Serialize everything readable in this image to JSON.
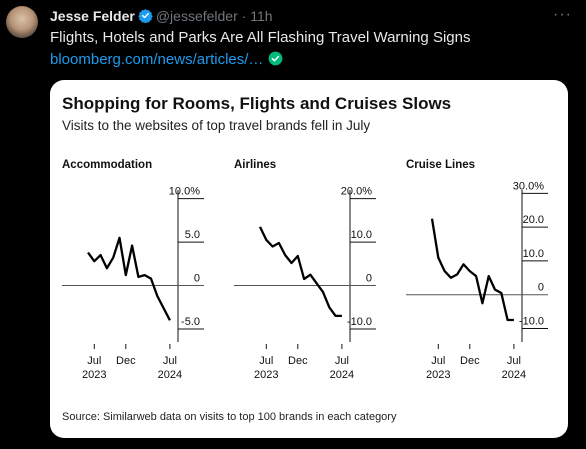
{
  "tweet": {
    "author_name": "Jesse Felder",
    "handle": "@jessefelder",
    "separator": "·",
    "time": "11h",
    "text": "Flights, Hotels and Parks Are All Flashing Travel Warning Signs",
    "link": "bloomberg.com/news/articles/…",
    "more_label": "···",
    "colors": {
      "verified": "#1d9bf0",
      "link": "#1d9bf0",
      "link_check": "#00ba7c"
    },
    "icons": {
      "verified": "verified-badge-icon",
      "link_check": "check-circle-icon",
      "more": "more-dots-icon"
    }
  },
  "chart_card": {
    "title": "Shopping for Rooms, Flights and Cruises Slows",
    "subtitle": "Visits to the websites of top travel brands fell in July",
    "source": "Source: Similarweb data on visits to top 100 brands in each category"
  },
  "chart_data": [
    {
      "type": "line",
      "title": "Accommodation",
      "x_tick_labels": [
        "Jul",
        "Dec",
        "Jul"
      ],
      "x_tick_years": [
        "2023",
        "",
        "2024"
      ],
      "y_tick_labels": [
        "10.0%",
        "5.0",
        "0",
        "-5.0"
      ],
      "y_ticks": [
        10,
        5,
        0,
        -5
      ],
      "ylim": [
        -6.5,
        11
      ],
      "x_months": [
        "2023-06",
        "2023-07",
        "2023-08",
        "2023-09",
        "2023-10",
        "2023-11",
        "2023-12",
        "2024-01",
        "2024-02",
        "2024-03",
        "2024-04",
        "2024-05",
        "2024-06",
        "2024-07"
      ],
      "values": [
        3.8,
        2.8,
        3.5,
        2.0,
        3.2,
        5.5,
        1.2,
        4.6,
        1.0,
        1.2,
        0.8,
        -1.2,
        -2.6,
        -4.0
      ]
    },
    {
      "type": "line",
      "title": "Airlines",
      "x_tick_labels": [
        "Jul",
        "Dec",
        "Jul"
      ],
      "x_tick_years": [
        "2023",
        "",
        "2024"
      ],
      "y_tick_labels": [
        "20.0%",
        "10.0",
        "0",
        "-10.0"
      ],
      "y_ticks": [
        20,
        10,
        0,
        -10
      ],
      "ylim": [
        -13,
        22
      ],
      "x_months": [
        "2023-06",
        "2023-07",
        "2023-08",
        "2023-09",
        "2023-10",
        "2023-11",
        "2023-12",
        "2024-01",
        "2024-02",
        "2024-03",
        "2024-04",
        "2024-05",
        "2024-06",
        "2024-07"
      ],
      "values": [
        13.5,
        10.5,
        9.0,
        9.8,
        7.0,
        5.2,
        6.8,
        1.5,
        2.5,
        0.5,
        -1.5,
        -5.0,
        -7.0,
        -7.0
      ]
    },
    {
      "type": "line",
      "title": "Cruise Lines",
      "x_tick_labels": [
        "Jul",
        "Dec",
        "Jul"
      ],
      "x_tick_years": [
        "2023",
        "",
        "2024"
      ],
      "y_tick_labels": [
        "30.0%",
        "20.0",
        "10.0",
        "0",
        "-10.0"
      ],
      "y_ticks": [
        30,
        20,
        10,
        0,
        -10
      ],
      "ylim": [
        -14,
        31
      ],
      "x_months": [
        "2023-06",
        "2023-07",
        "2023-08",
        "2023-09",
        "2023-10",
        "2023-11",
        "2023-12",
        "2024-01",
        "2024-02",
        "2024-03",
        "2024-04",
        "2024-05",
        "2024-06",
        "2024-07"
      ],
      "values": [
        22.5,
        11.0,
        7.0,
        5.0,
        6.0,
        9.0,
        7.0,
        5.5,
        -2.5,
        5.5,
        1.5,
        0.5,
        -7.5,
        -7.5
      ]
    }
  ]
}
